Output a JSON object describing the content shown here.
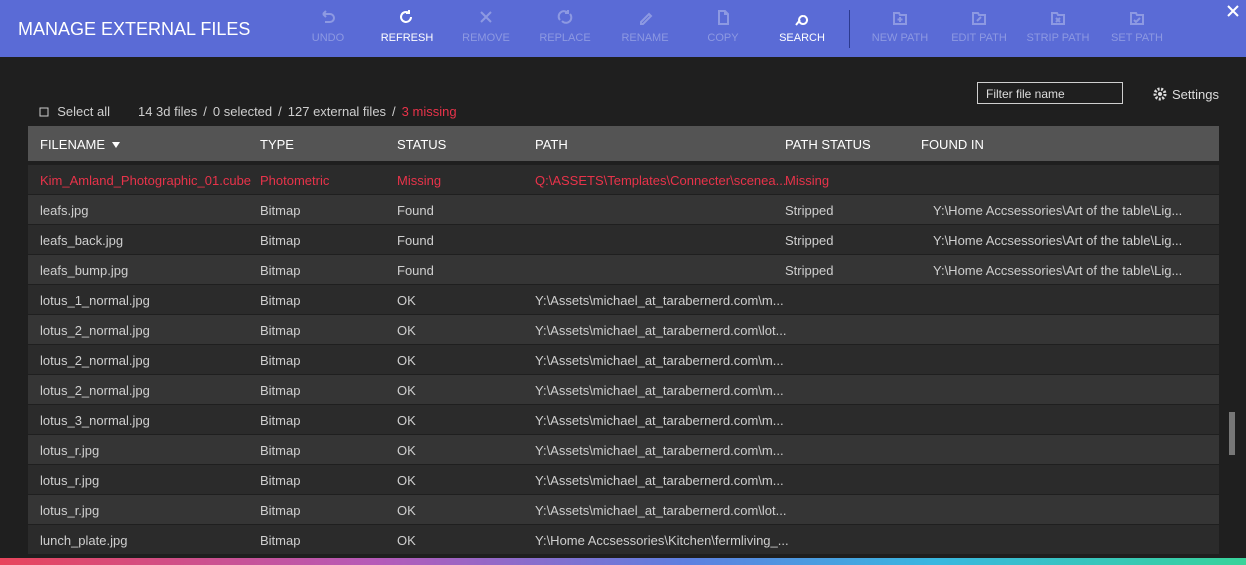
{
  "header": {
    "title": "MANAGE EXTERNAL FILES",
    "buttons": [
      {
        "label": "UNDO",
        "enabled": false
      },
      {
        "label": "REFRESH",
        "enabled": true
      },
      {
        "label": "REMOVE",
        "enabled": false
      },
      {
        "label": "REPLACE",
        "enabled": false
      },
      {
        "label": "RENAME",
        "enabled": false
      },
      {
        "label": "COPY",
        "enabled": false
      },
      {
        "label": "SEARCH",
        "enabled": true
      },
      {
        "label": "NEW PATH",
        "enabled": false
      },
      {
        "label": "EDIT PATH",
        "enabled": false
      },
      {
        "label": "STRIP PATH",
        "enabled": false
      },
      {
        "label": "SET PATH",
        "enabled": false
      }
    ]
  },
  "summary": {
    "select_all": "Select all",
    "separator": "/",
    "files": "14 3d files",
    "selected": "0 selected",
    "external": "127 external files",
    "missing": "3 missing"
  },
  "filter": {
    "placeholder": "Filter file name"
  },
  "settings": "Settings",
  "table": {
    "columns": [
      "FILENAME",
      "TYPE",
      "STATUS",
      "PATH",
      "PATH STATUS",
      "FOUND IN"
    ],
    "alert_color": "#e8334a",
    "alert_rows": [
      0
    ],
    "rows": [
      [
        "Kim_Amland_Photographic_01.cube",
        "Photometric",
        "Missing",
        "Q:\\ASSETS\\Templates\\Connecter\\scenea...",
        "Missing",
        null
      ],
      [
        "leafs.jpg",
        "Bitmap",
        "Found",
        null,
        "Stripped",
        "Y:\\Home Accsessories\\Art of the table\\Lig..."
      ],
      [
        "leafs_back.jpg",
        "Bitmap",
        "Found",
        null,
        "Stripped",
        "Y:\\Home Accsessories\\Art of the table\\Lig..."
      ],
      [
        "leafs_bump.jpg",
        "Bitmap",
        "Found",
        null,
        "Stripped",
        "Y:\\Home Accsessories\\Art of the table\\Lig..."
      ],
      [
        "lotus_1_normal.jpg",
        "Bitmap",
        "OK",
        "Y:\\Assets\\michael_at_tarabernerd.com\\m...",
        null,
        null
      ],
      [
        "lotus_2_normal.jpg",
        "Bitmap",
        "OK",
        "Y:\\Assets\\michael_at_tarabernerd.com\\lot...",
        null,
        null
      ],
      [
        "lotus_2_normal.jpg",
        "Bitmap",
        "OK",
        "Y:\\Assets\\michael_at_tarabernerd.com\\m...",
        null,
        null
      ],
      [
        "lotus_2_normal.jpg",
        "Bitmap",
        "OK",
        "Y:\\Assets\\michael_at_tarabernerd.com\\m...",
        null,
        null
      ],
      [
        "lotus_3_normal.jpg",
        "Bitmap",
        "OK",
        "Y:\\Assets\\michael_at_tarabernerd.com\\m...",
        null,
        null
      ],
      [
        "lotus_r.jpg",
        "Bitmap",
        "OK",
        "Y:\\Assets\\michael_at_tarabernerd.com\\m...",
        null,
        null
      ],
      [
        "lotus_r.jpg",
        "Bitmap",
        "OK",
        "Y:\\Assets\\michael_at_tarabernerd.com\\m...",
        null,
        null
      ],
      [
        "lotus_r.jpg",
        "Bitmap",
        "OK",
        "Y:\\Assets\\michael_at_tarabernerd.com\\lot...",
        null,
        null
      ],
      [
        "lunch_plate.jpg",
        "Bitmap",
        "OK",
        "Y:\\Home Accsessories\\Kitchen\\fermliving_...",
        null,
        null
      ]
    ]
  }
}
